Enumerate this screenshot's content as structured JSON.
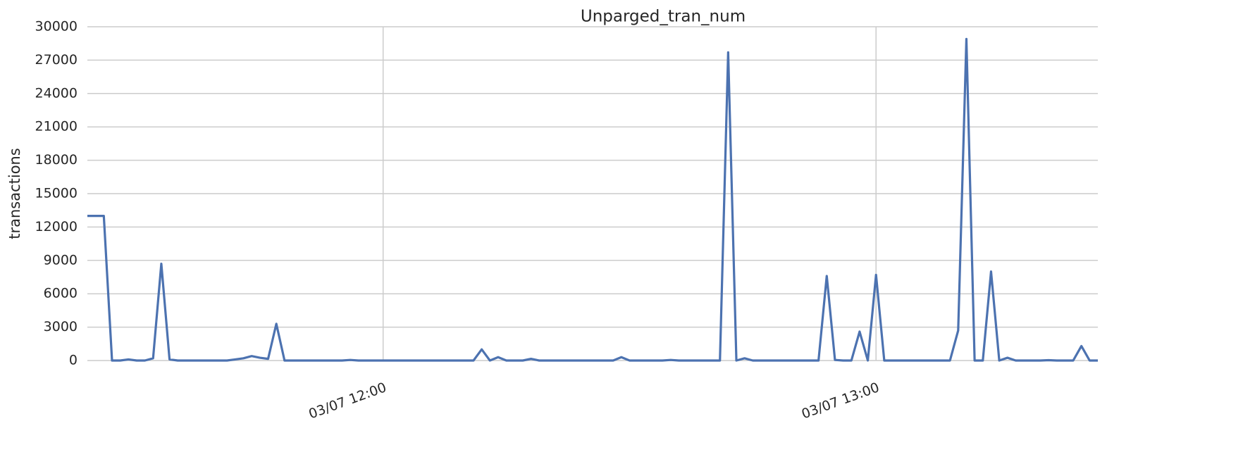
{
  "chart_data": {
    "type": "line",
    "title": "Unparged_tran_num",
    "y_label": "transactions",
    "x": [
      "03/07 11:24",
      "03/07 11:25",
      "03/07 11:26",
      "03/07 11:27",
      "03/07 11:28",
      "03/07 11:29",
      "03/07 11:30",
      "03/07 11:31",
      "03/07 11:32",
      "03/07 11:33",
      "03/07 11:34",
      "03/07 11:35",
      "03/07 11:36",
      "03/07 11:37",
      "03/07 11:38",
      "03/07 11:39",
      "03/07 11:40",
      "03/07 11:41",
      "03/07 11:42",
      "03/07 11:43",
      "03/07 11:44",
      "03/07 11:45",
      "03/07 11:46",
      "03/07 11:47",
      "03/07 11:48",
      "03/07 11:49",
      "03/07 11:50",
      "03/07 11:51",
      "03/07 11:52",
      "03/07 11:53",
      "03/07 11:54",
      "03/07 11:55",
      "03/07 11:56",
      "03/07 11:57",
      "03/07 11:58",
      "03/07 11:59",
      "03/07 12:00",
      "03/07 12:01",
      "03/07 12:02",
      "03/07 12:03",
      "03/07 12:04",
      "03/07 12:05",
      "03/07 12:06",
      "03/07 12:07",
      "03/07 12:08",
      "03/07 12:09",
      "03/07 12:10",
      "03/07 12:11",
      "03/07 12:12",
      "03/07 12:13",
      "03/07 12:14",
      "03/07 12:15",
      "03/07 12:16",
      "03/07 12:17",
      "03/07 12:18",
      "03/07 12:19",
      "03/07 12:20",
      "03/07 12:21",
      "03/07 12:22",
      "03/07 12:23",
      "03/07 12:24",
      "03/07 12:25",
      "03/07 12:26",
      "03/07 12:27",
      "03/07 12:28",
      "03/07 12:29",
      "03/07 12:30",
      "03/07 12:31",
      "03/07 12:32",
      "03/07 12:33",
      "03/07 12:34",
      "03/07 12:35",
      "03/07 12:36",
      "03/07 12:37",
      "03/07 12:38",
      "03/07 12:39",
      "03/07 12:40",
      "03/07 12:41",
      "03/07 12:42",
      "03/07 12:43",
      "03/07 12:44",
      "03/07 12:45",
      "03/07 12:46",
      "03/07 12:47",
      "03/07 12:48",
      "03/07 12:49",
      "03/07 12:50",
      "03/07 12:51",
      "03/07 12:52",
      "03/07 12:53",
      "03/07 12:54",
      "03/07 12:55",
      "03/07 12:56",
      "03/07 12:57",
      "03/07 12:58",
      "03/07 12:59",
      "03/07 13:00",
      "03/07 13:01",
      "03/07 13:02",
      "03/07 13:03",
      "03/07 13:04",
      "03/07 13:05",
      "03/07 13:06",
      "03/07 13:07",
      "03/07 13:08",
      "03/07 13:09",
      "03/07 13:10",
      "03/07 13:11",
      "03/07 13:12",
      "03/07 13:13",
      "03/07 13:14",
      "03/07 13:15",
      "03/07 13:16",
      "03/07 13:17",
      "03/07 13:18",
      "03/07 13:19",
      "03/07 13:20",
      "03/07 13:21",
      "03/07 13:22",
      "03/07 13:23",
      "03/07 13:24",
      "03/07 13:25",
      "03/07 13:26",
      "03/07 13:27"
    ],
    "series": [
      {
        "color": "#4c72b0",
        "values": [
          13000,
          13000,
          13000,
          0,
          0,
          100,
          0,
          0,
          200,
          8700,
          100,
          0,
          0,
          0,
          0,
          0,
          0,
          0,
          100,
          200,
          400,
          250,
          150,
          3300,
          0,
          0,
          0,
          0,
          0,
          0,
          0,
          0,
          50,
          0,
          0,
          0,
          0,
          0,
          0,
          0,
          0,
          0,
          0,
          0,
          0,
          0,
          0,
          0,
          1000,
          0,
          300,
          0,
          0,
          0,
          150,
          0,
          0,
          0,
          0,
          0,
          0,
          0,
          0,
          0,
          0,
          300,
          0,
          0,
          0,
          0,
          0,
          50,
          0,
          0,
          0,
          0,
          0,
          0,
          27700,
          0,
          200,
          0,
          0,
          0,
          0,
          0,
          0,
          0,
          0,
          0,
          7600,
          50,
          0,
          0,
          2600,
          0,
          7700,
          0,
          0,
          0,
          0,
          0,
          0,
          0,
          0,
          0,
          2700,
          28900,
          0,
          0,
          8000,
          0,
          250,
          0,
          0,
          0,
          0,
          30,
          0,
          0,
          0,
          1300,
          0,
          0
        ]
      }
    ],
    "xlim": [
      "03/07 11:24",
      "03/07 13:27"
    ],
    "xticks": [
      "03/07 12:00",
      "03/07 13:00"
    ],
    "ylim": [
      0,
      30000
    ],
    "yticks": [
      0,
      3000,
      6000,
      9000,
      12000,
      15000,
      18000,
      21000,
      24000,
      27000,
      30000
    ],
    "grid": true
  }
}
